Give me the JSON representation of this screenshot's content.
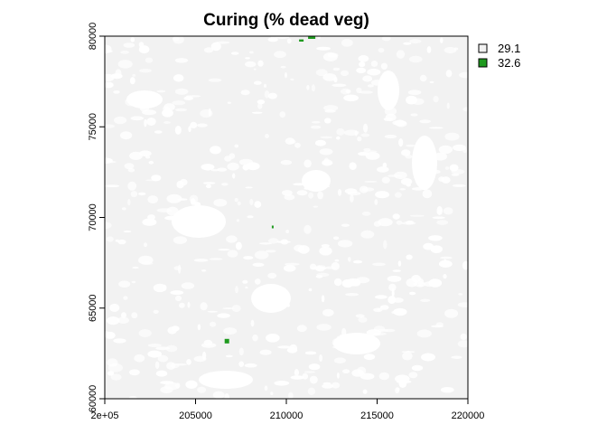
{
  "title": "Curing (% dead veg)",
  "colors": {
    "background": "#ffffff",
    "raster_light": "#f2f2f2",
    "raster_gap": "#ffffff",
    "class_high": "#1f9a1f",
    "axis": "#000000"
  },
  "chart_data": {
    "type": "heatmap",
    "title": "Curing (% dead veg)",
    "xlim": [
      200000,
      220000
    ],
    "ylim": [
      60000,
      80000
    ],
    "x_ticks": [
      200000,
      205000,
      210000,
      215000,
      220000
    ],
    "x_tick_labels": [
      "2e+05",
      "205000",
      "210000",
      "215000",
      "220000"
    ],
    "y_ticks": [
      60000,
      65000,
      70000,
      75000,
      80000
    ],
    "y_tick_labels": [
      "60000",
      "65000",
      "70000",
      "75000",
      "80000"
    ],
    "legend": {
      "placement": "right",
      "entries": [
        {
          "label": "29.1",
          "color": "#f2f2f2"
        },
        {
          "label": "32.6",
          "color": "#1f9a1f"
        }
      ]
    },
    "high_value_patches": [
      {
        "x": 211200,
        "y": 79850,
        "w": 400,
        "h": 200
      },
      {
        "x": 210700,
        "y": 79700,
        "w": 250,
        "h": 120
      },
      {
        "x": 209200,
        "y": 69400,
        "w": 60,
        "h": 150
      },
      {
        "x": 206600,
        "y": 63050,
        "w": 250,
        "h": 250
      }
    ]
  }
}
